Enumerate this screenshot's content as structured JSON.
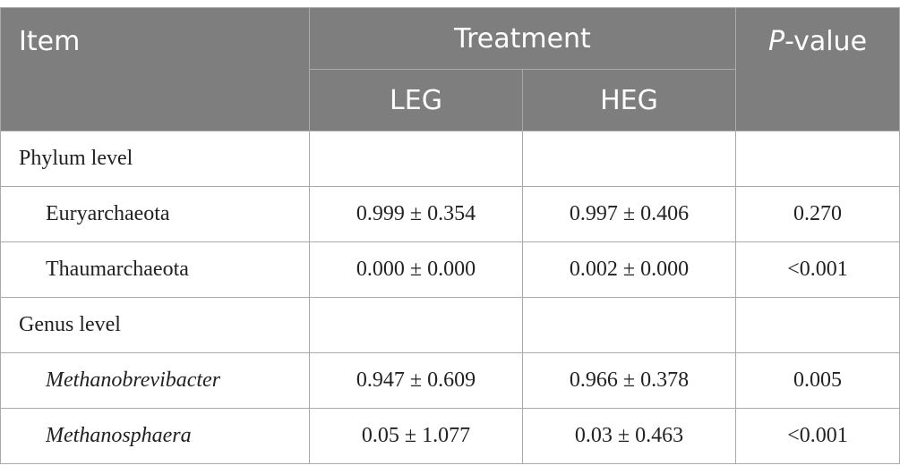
{
  "header": {
    "item": "Item",
    "treatment": "Treatment",
    "p_value_italic": "P",
    "p_value_rest": "-value",
    "leg": "LEG",
    "heg": "HEG"
  },
  "rows": [
    {
      "label": "Phylum level",
      "leg": "",
      "heg": "",
      "p": ""
    },
    {
      "label": "Euryarchaeota",
      "leg": "0.999 ± 0.354",
      "heg": "0.997 ± 0.406",
      "p": "0.270"
    },
    {
      "label": "Thaumarchaeota",
      "leg": "0.000 ± 0.000",
      "heg": "0.002 ± 0.000",
      "p": "<0.001"
    },
    {
      "label": "Genus level",
      "leg": "",
      "heg": "",
      "p": ""
    },
    {
      "label": "Methanobrevibacter",
      "leg": "0.947 ± 0.609",
      "heg": "0.966 ± 0.378",
      "p": "0.005"
    },
    {
      "label": "Methanosphaera",
      "leg": "0.05 ± 1.077",
      "heg": "0.03 ± 0.463",
      "p": "<0.001"
    }
  ],
  "colors": {
    "header_bg": "#7d7e7d",
    "header_text": "#ffffff",
    "border": "#a9aaa9"
  }
}
